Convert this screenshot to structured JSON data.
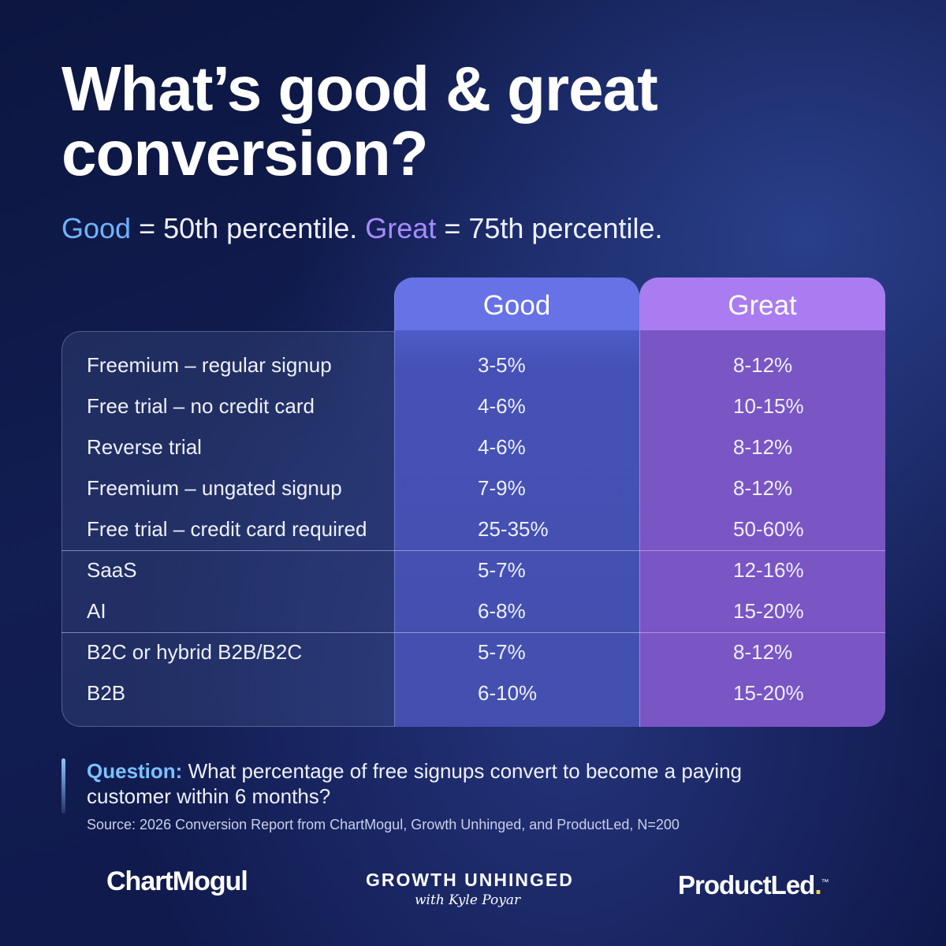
{
  "title_line1": "What’s good & great",
  "title_line2": "conversion?",
  "subtitle": {
    "good_word": "Good",
    "good_rest": " = 50th percentile. ",
    "great_word": "Great",
    "great_rest": " = 75th percentile."
  },
  "colors": {
    "good": "#6672e6",
    "great": "#a97cf2",
    "accent_blue": "#6fb3ff",
    "accent_purple": "#a98bff"
  },
  "chart_data": {
    "type": "table",
    "columns": [
      "",
      "Good",
      "Great"
    ],
    "groups": [
      {
        "rows": [
          {
            "label": "Freemium – regular signup",
            "good": "3-5%",
            "great": "8-12%"
          },
          {
            "label": "Free trial – no credit card",
            "good": "4-6%",
            "great": "10-15%"
          },
          {
            "label": "Reverse trial",
            "good": "4-6%",
            "great": "8-12%"
          },
          {
            "label": "Freemium – ungated signup",
            "good": "7-9%",
            "great": "8-12%"
          },
          {
            "label": "Free trial – credit card required",
            "good": "25-35%",
            "great": "50-60%"
          }
        ]
      },
      {
        "rows": [
          {
            "label": "SaaS",
            "good": "5-7%",
            "great": "12-16%"
          },
          {
            "label": "AI",
            "good": "6-8%",
            "great": "15-20%"
          }
        ]
      },
      {
        "rows": [
          {
            "label": "B2C or hybrid B2B/B2C",
            "good": "5-7%",
            "great": "8-12%"
          },
          {
            "label": "B2B",
            "good": "6-10%",
            "great": "15-20%"
          }
        ]
      }
    ]
  },
  "question": {
    "label": "Question:",
    "text": " What percentage of free signups convert to become a paying customer within 6 months?"
  },
  "source": "Source: 2026 Conversion Report from ChartMogul, Growth Unhinged, and ProductLed, N=200",
  "logos": {
    "chartmogul": "ChartMogul",
    "growth": "GROWTH UNHINGED",
    "growth_sub": "with Kyle Poyar",
    "productled": "ProductLed",
    "productled_dot": ".",
    "productled_tm": "™"
  }
}
